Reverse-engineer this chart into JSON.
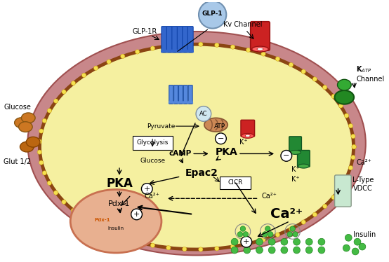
{
  "bg_color": "#ffffff",
  "cell_outer_color": "#c87070",
  "cell_inner_color": "#f5f0a0",
  "cell_membrane_dot_color": "#f5e050",
  "nucleus_color": "#e8b090",
  "glp1_ball_color": "#a8c8e8",
  "glp1r_color": "#3366cc",
  "kv_channel_color": "#cc2222",
  "katp_channel_color": "#228822",
  "glucose_color": "#cc7722",
  "mitochondria_color": "#cc8855",
  "red_channel_color": "#cc2222",
  "green_channel_color": "#228833",
  "ac_color": "#d0e8f0",
  "labels": {
    "glp1": "GLP-1",
    "glp1r": "GLP-1R",
    "kv_channel": "Kv Channel",
    "katp_line1": "K",
    "katp_line2": "Channel",
    "glucose_top": "Glucose",
    "glut12": "Glut 1/2",
    "pyruvate": "Pyruvate",
    "atp": "ATP",
    "glycolysis": "Glycolysis",
    "glucose_inner": "Glucose",
    "camp": "cAMP",
    "pka_right": "PKA",
    "epac2": "Epac2",
    "pka_left": "PKA",
    "pdx1": "Pdx-1",
    "ca2plus_dashed_left": "Ca²⁺",
    "ca2plus_dashed_right": "Ca²⁺",
    "ca2plus_main": "Ca²⁺",
    "cicr": "CICR",
    "insulin_label": "Insulin",
    "kplus1": "K⁺",
    "kplus2": "K⁺",
    "kplus3": "K⁺",
    "ca2plus_right": "Ca²⁺",
    "ltype_line1": "L-Type",
    "ltype_line2": "VDCC",
    "ac": "AC",
    "pdx1_nucleus": "Pdx-1",
    "insulin_nucleus": "Insulin"
  }
}
